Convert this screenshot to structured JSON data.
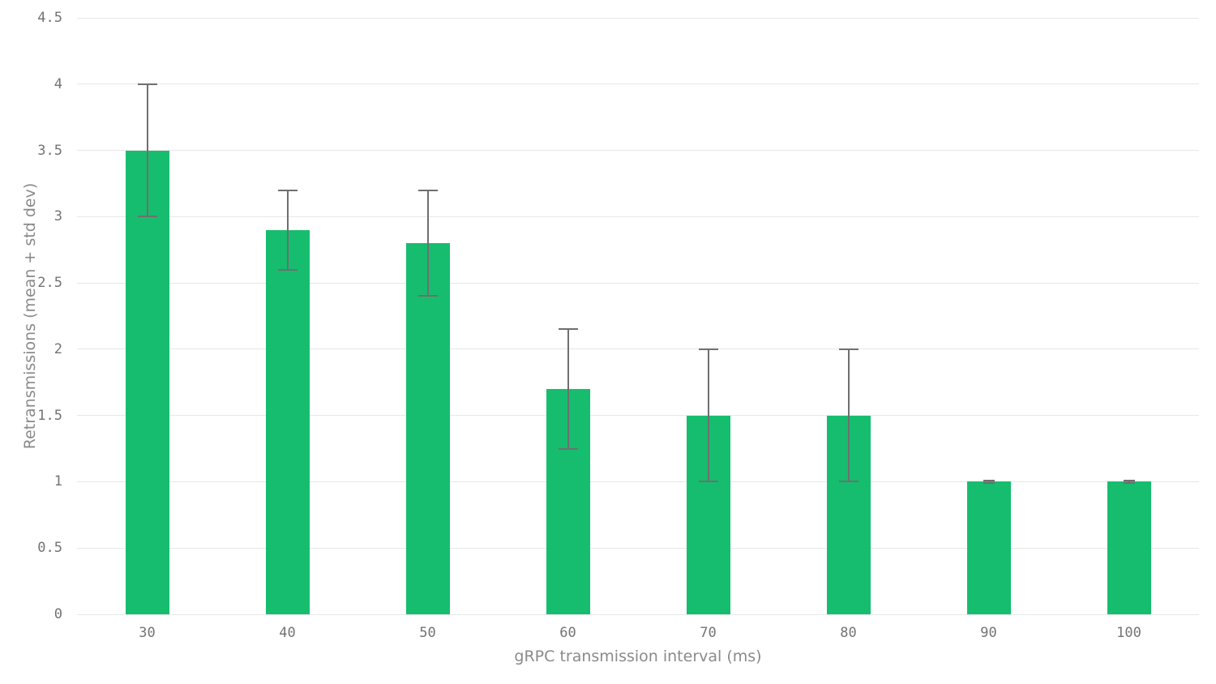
{
  "chart_data": {
    "type": "bar",
    "title": "",
    "xlabel": "gRPC transmission interval (ms)",
    "ylabel": "Retransmissions (mean + std dev)",
    "categories": [
      "30",
      "40",
      "50",
      "60",
      "70",
      "80",
      "90",
      "100"
    ],
    "values": [
      3.5,
      2.9,
      2.8,
      1.7,
      1.5,
      1.5,
      1.0,
      1.0
    ],
    "error_low": [
      3.0,
      2.6,
      2.4,
      1.25,
      1.0,
      1.0,
      0.99,
      0.99
    ],
    "error_high": [
      4.0,
      3.2,
      3.2,
      2.15,
      2.0,
      2.0,
      1.01,
      1.01
    ],
    "ylim": [
      0,
      4.5
    ],
    "ytick_step": 0.5,
    "yticks": [
      "0",
      "0.5",
      "1",
      "1.5",
      "2",
      "2.5",
      "3",
      "3.5",
      "4",
      "4.5"
    ],
    "grid": true,
    "legend": "none",
    "colors": {
      "bar": "#16bd6e",
      "gridline": "#e7e7e7",
      "error_bar": "#6f6f6f",
      "tick_label": "#737373",
      "axis_title": "#8a8a8a",
      "background": "#ffffff"
    }
  }
}
